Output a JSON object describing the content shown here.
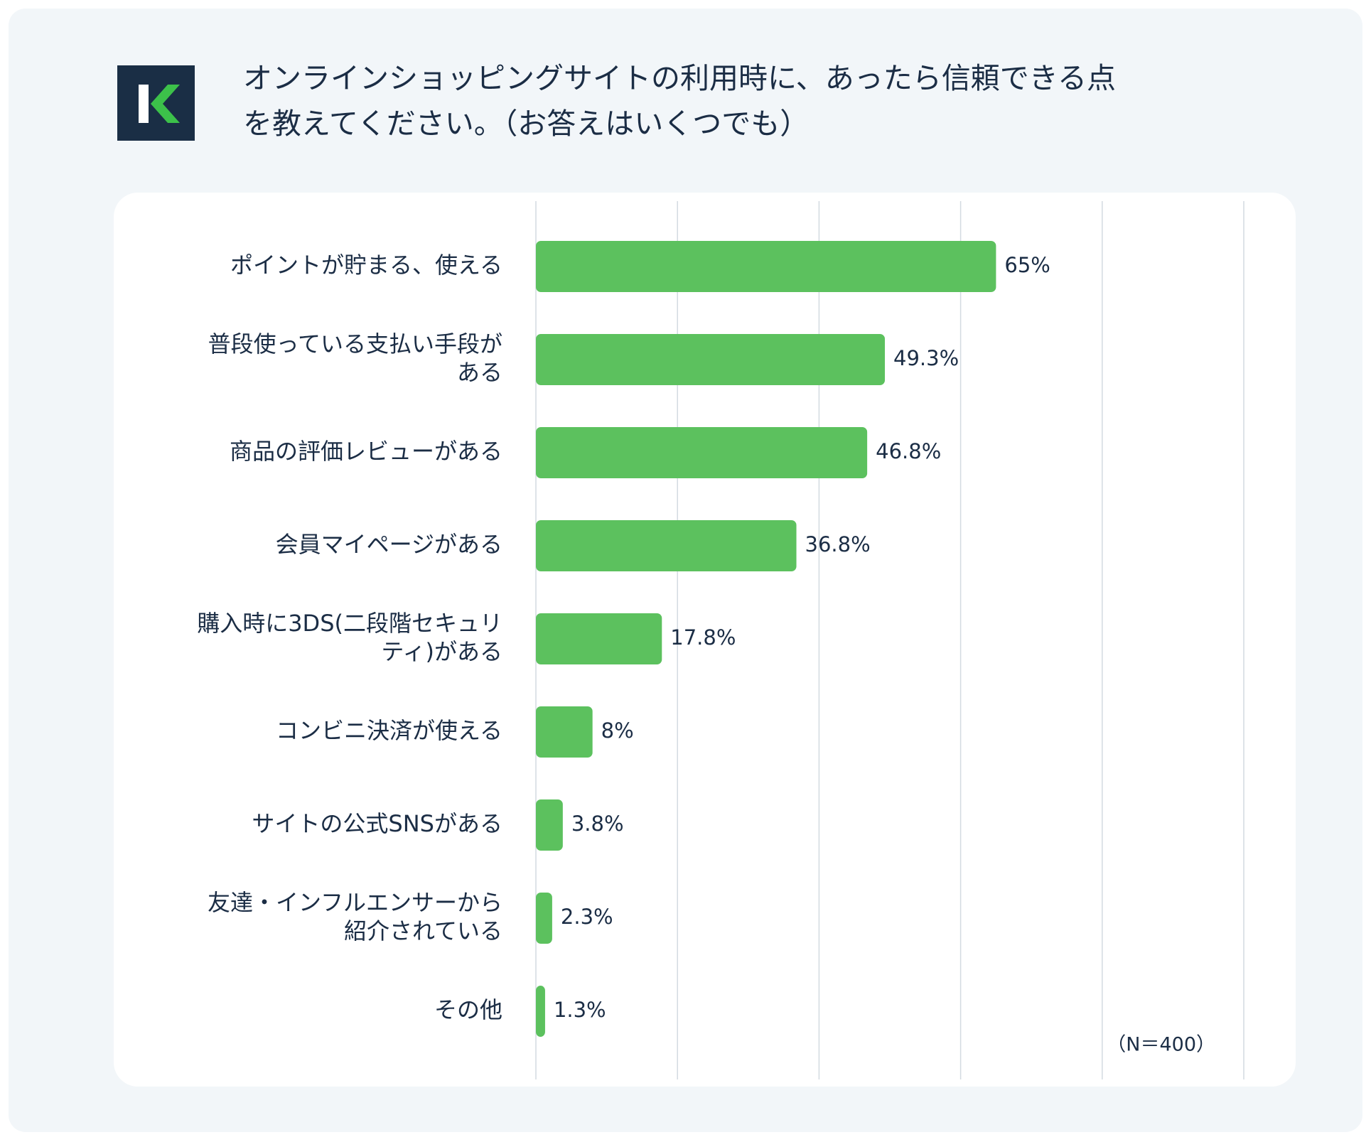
{
  "chart_data": {
    "type": "barh",
    "title": "オンラインショッピングサイトの利用時に、あったら信頼できる点\nを教えてください。（お答えはいくつでも）",
    "categories": [
      "ポイントが貯まる、使える",
      "普段使っている支払い手段が\nある",
      "商品の評価レビューがある",
      "会員マイページがある",
      "購入時に3DS(二段階セキュリ\nティ)がある",
      "コンビニ決済が使える",
      "サイトの公式SNSがある",
      "友達・インフルエンサーから\n紹介されている",
      "その他"
    ],
    "values": [
      65,
      49.3,
      46.8,
      36.8,
      17.8,
      8,
      3.8,
      2.3,
      1.3
    ],
    "value_labels": [
      "65%",
      "49.3%",
      "46.8%",
      "36.8%",
      "17.8%",
      "8%",
      "3.8%",
      "2.3%",
      "1.3%"
    ],
    "color": "#5cc15e",
    "xlim": [
      0,
      100
    ],
    "xticks": [
      0,
      20,
      40,
      60,
      80,
      100
    ],
    "grid": true,
    "annotation": "（N＝400）"
  }
}
